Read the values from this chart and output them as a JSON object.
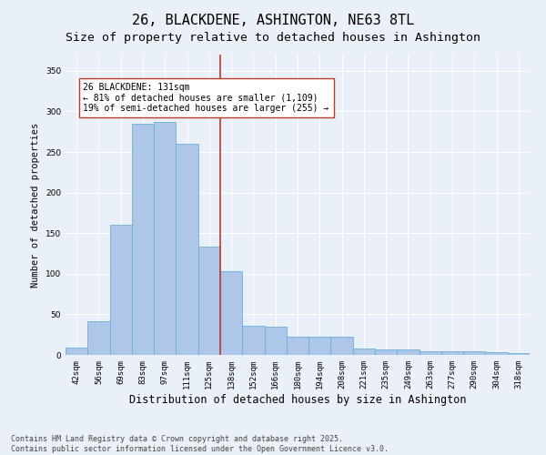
{
  "title": "26, BLACKDENE, ASHINGTON, NE63 8TL",
  "subtitle": "Size of property relative to detached houses in Ashington",
  "xlabel": "Distribution of detached houses by size in Ashington",
  "ylabel": "Number of detached properties",
  "categories": [
    "42sqm",
    "56sqm",
    "69sqm",
    "83sqm",
    "97sqm",
    "111sqm",
    "125sqm",
    "138sqm",
    "152sqm",
    "166sqm",
    "180sqm",
    "194sqm",
    "208sqm",
    "221sqm",
    "235sqm",
    "249sqm",
    "263sqm",
    "277sqm",
    "290sqm",
    "304sqm",
    "318sqm"
  ],
  "values": [
    9,
    42,
    160,
    285,
    287,
    260,
    133,
    103,
    36,
    35,
    22,
    22,
    22,
    8,
    7,
    7,
    5,
    5,
    4,
    3,
    2
  ],
  "bar_color": "#aec6e8",
  "bar_edge_color": "#6aafd6",
  "vline_color": "#c0392b",
  "annotation_text": "26 BLACKDENE: 131sqm\n← 81% of detached houses are smaller (1,109)\n19% of semi-detached houses are larger (255) →",
  "annotation_box_color": "#ffffff",
  "annotation_box_edge": "#c0392b",
  "ylim": [
    0,
    370
  ],
  "yticks": [
    0,
    50,
    100,
    150,
    200,
    250,
    300,
    350
  ],
  "background_color": "#eaf0f8",
  "plot_bg_color": "#eaf0f8",
  "footer": "Contains HM Land Registry data © Crown copyright and database right 2025.\nContains public sector information licensed under the Open Government Licence v3.0.",
  "title_fontsize": 11,
  "subtitle_fontsize": 9.5,
  "xlabel_fontsize": 8.5,
  "ylabel_fontsize": 7.5,
  "tick_fontsize": 6.5,
  "annotation_fontsize": 7,
  "footer_fontsize": 6
}
